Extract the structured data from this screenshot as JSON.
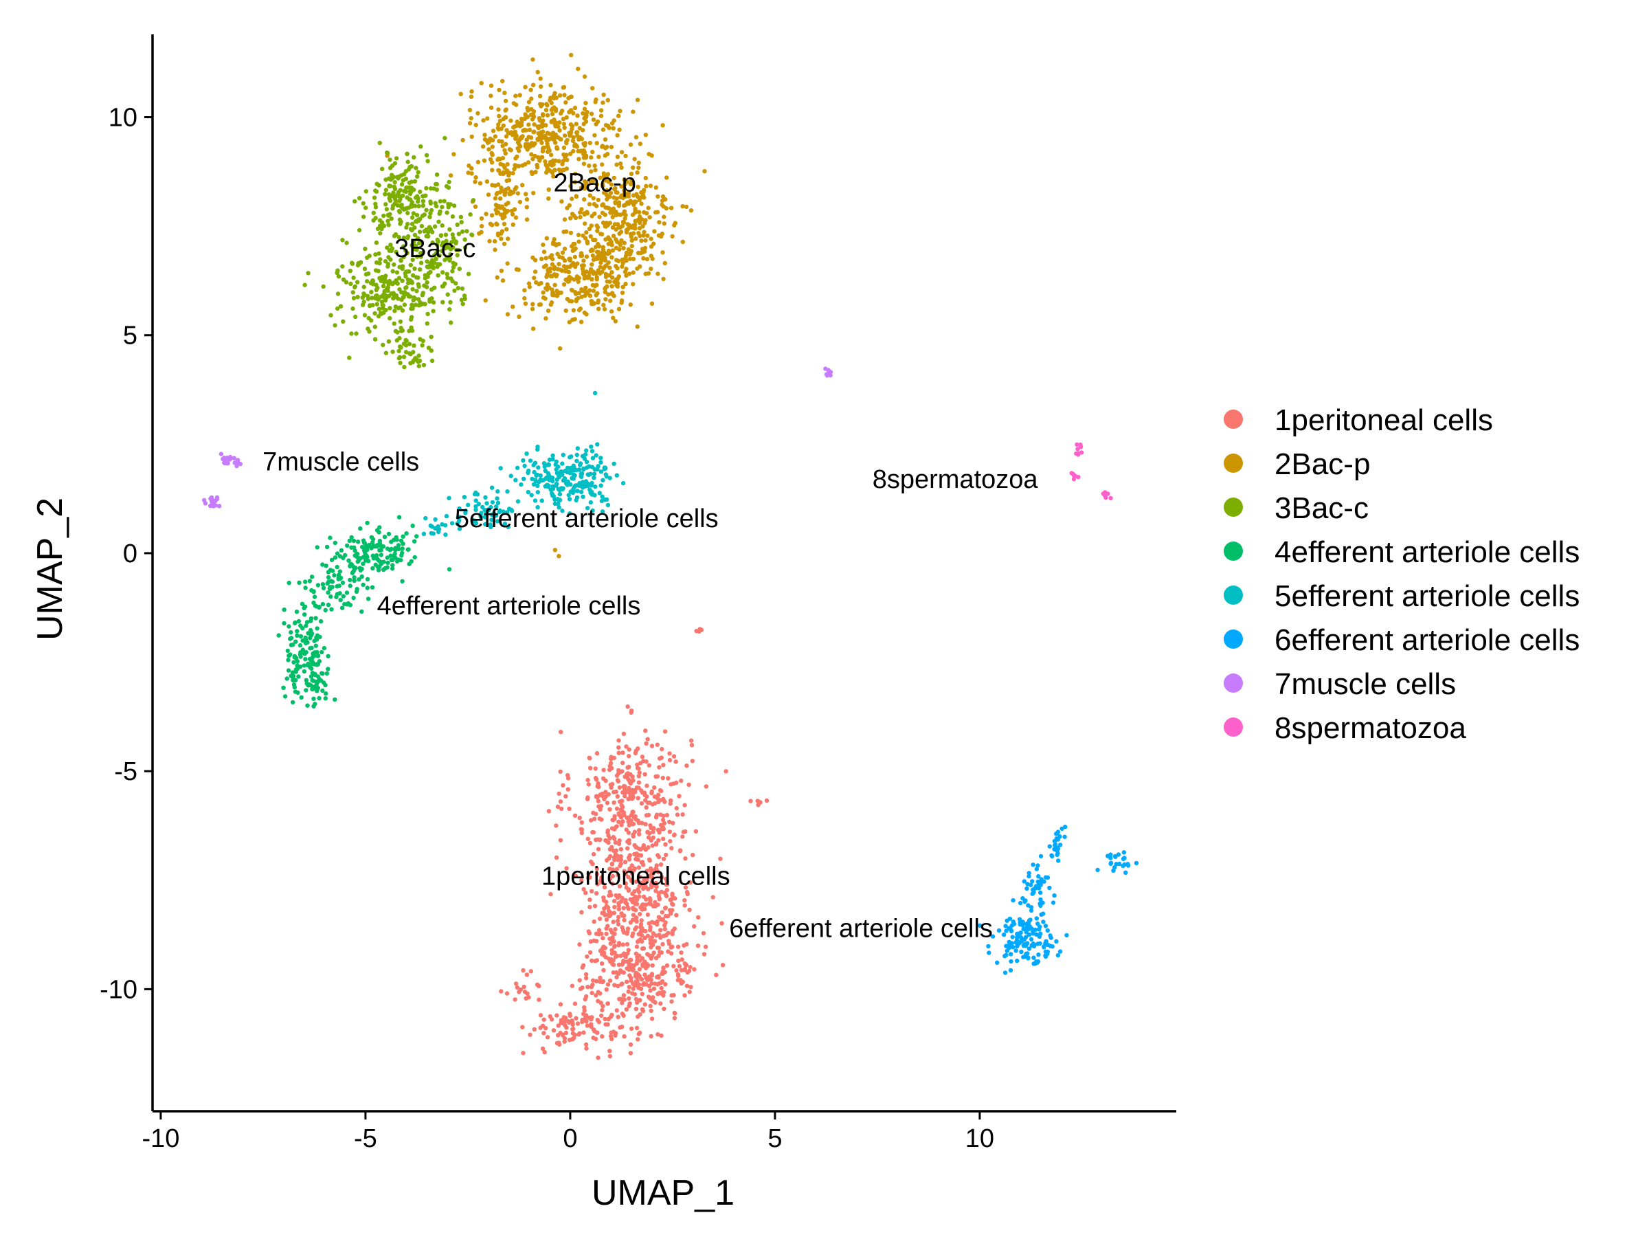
{
  "chart_data": {
    "type": "scatter",
    "title": "",
    "xlabel": "UMAP_1",
    "ylabel": "UMAP_2",
    "xlim": [
      -10.2,
      14.8
    ],
    "ylim": [
      -12.8,
      11.9
    ],
    "x_ticks": [
      {
        "value": -10,
        "label": "-10"
      },
      {
        "value": -5,
        "label": "-5"
      },
      {
        "value": 0,
        "label": "0"
      },
      {
        "value": 5,
        "label": "5"
      },
      {
        "value": 10,
        "label": "10"
      }
    ],
    "y_ticks": [
      {
        "value": 10,
        "label": "10"
      },
      {
        "value": 5,
        "label": "5"
      },
      {
        "value": 0,
        "label": "0"
      },
      {
        "value": -5,
        "label": "-5"
      },
      {
        "value": -10,
        "label": "-10"
      }
    ],
    "grid": false,
    "legend_position": "right",
    "series": [
      {
        "name": "1peritoneal cells",
        "color": "#F8766D",
        "label": "1peritoneal cells",
        "label_at": [
          1.6,
          -7.4
        ],
        "blobs": [
          {
            "cx": 1.5,
            "cy": -5.6,
            "rx": 1.3,
            "ry": 1.4,
            "n": 320
          },
          {
            "cx": 1.6,
            "cy": -7.8,
            "rx": 1.3,
            "ry": 1.4,
            "n": 360
          },
          {
            "cx": 1.7,
            "cy": -9.6,
            "rx": 1.3,
            "ry": 1.0,
            "n": 300
          },
          {
            "cx": 0.3,
            "cy": -10.9,
            "rx": 1.2,
            "ry": 0.45,
            "n": 110
          },
          {
            "cx": -1.2,
            "cy": -10.0,
            "rx": 0.4,
            "ry": 0.35,
            "n": 18
          },
          {
            "cx": 3.2,
            "cy": -1.8,
            "rx": 0.12,
            "ry": 0.1,
            "n": 5
          },
          {
            "cx": 4.6,
            "cy": -5.7,
            "rx": 0.2,
            "ry": 0.06,
            "n": 6
          }
        ]
      },
      {
        "name": "2Bac-p",
        "color": "#CD9600",
        "label": "2Bac-p",
        "label_at": [
          0.6,
          8.5
        ],
        "blobs": [
          {
            "cx": -0.6,
            "cy": 9.6,
            "rx": 1.7,
            "ry": 1.0,
            "n": 420
          },
          {
            "cx": 1.2,
            "cy": 7.6,
            "rx": 1.2,
            "ry": 1.5,
            "n": 350
          },
          {
            "cx": 0.1,
            "cy": 6.3,
            "rx": 1.3,
            "ry": 0.9,
            "n": 260
          },
          {
            "cx": -1.7,
            "cy": 8.0,
            "rx": 0.5,
            "ry": 1.0,
            "n": 90
          },
          {
            "cx": -0.3,
            "cy": 0.1,
            "rx": 0.1,
            "ry": 0.15,
            "n": 2
          }
        ]
      },
      {
        "name": "3Bac-c",
        "color": "#7CAE00",
        "label": "3Bac-c",
        "label_at": [
          -3.3,
          7.0
        ],
        "blobs": [
          {
            "cx": -4.0,
            "cy": 8.0,
            "rx": 0.9,
            "ry": 1.0,
            "n": 230
          },
          {
            "cx": -4.3,
            "cy": 6.1,
            "rx": 1.2,
            "ry": 1.0,
            "n": 280
          },
          {
            "cx": -3.0,
            "cy": 7.0,
            "rx": 0.5,
            "ry": 1.0,
            "n": 70
          },
          {
            "cx": -3.8,
            "cy": 4.6,
            "rx": 0.6,
            "ry": 0.35,
            "n": 40
          }
        ]
      },
      {
        "name": "4efferent arteriole cells",
        "color": "#00BE67",
        "label": "4efferent arteriole cells",
        "label_at": [
          -1.5,
          -1.2
        ],
        "blobs": [
          {
            "cx": -4.8,
            "cy": 0.0,
            "rx": 0.9,
            "ry": 0.5,
            "n": 140
          },
          {
            "cx": -5.8,
            "cy": -0.8,
            "rx": 0.7,
            "ry": 0.6,
            "n": 80
          },
          {
            "cx": -6.5,
            "cy": -2.3,
            "rx": 0.45,
            "ry": 0.9,
            "n": 130
          },
          {
            "cx": -6.1,
            "cy": -3.0,
            "rx": 0.3,
            "ry": 0.3,
            "n": 30
          }
        ]
      },
      {
        "name": "5efferent arteriole cells",
        "color": "#00BFC4",
        "label": "5efferent arteriole cells",
        "label_at": [
          0.4,
          0.8
        ],
        "blobs": [
          {
            "cx": 0.0,
            "cy": 1.7,
            "rx": 1.1,
            "ry": 0.55,
            "n": 230
          },
          {
            "cx": -2.0,
            "cy": 1.0,
            "rx": 0.7,
            "ry": 0.35,
            "n": 60
          },
          {
            "cx": -3.2,
            "cy": 0.6,
            "rx": 0.4,
            "ry": 0.2,
            "n": 20
          },
          {
            "cx": 0.6,
            "cy": 3.7,
            "rx": 0.05,
            "ry": 0.05,
            "n": 1
          }
        ]
      },
      {
        "name": "6efferent arteriole cells",
        "color": "#00A9FF",
        "label": "6efferent arteriole cells",
        "label_at": [
          7.1,
          -8.6
        ],
        "blobs": [
          {
            "cx": 11.1,
            "cy": -8.8,
            "rx": 0.7,
            "ry": 0.55,
            "n": 140
          },
          {
            "cx": 11.4,
            "cy": -7.6,
            "rx": 0.3,
            "ry": 0.5,
            "n": 40
          },
          {
            "cx": 11.9,
            "cy": -6.6,
            "rx": 0.15,
            "ry": 0.35,
            "n": 25
          },
          {
            "cx": 13.4,
            "cy": -7.1,
            "rx": 0.35,
            "ry": 0.25,
            "n": 22
          }
        ]
      },
      {
        "name": "7muscle cells",
        "color": "#C77CFF",
        "label": "7muscle cells",
        "label_at": [
          -5.6,
          2.1
        ],
        "blobs": [
          {
            "cx": -8.3,
            "cy": 2.1,
            "rx": 0.25,
            "ry": 0.15,
            "n": 22
          },
          {
            "cx": -8.7,
            "cy": 1.15,
            "rx": 0.2,
            "ry": 0.12,
            "n": 18
          },
          {
            "cx": 6.3,
            "cy": 4.15,
            "rx": 0.12,
            "ry": 0.08,
            "n": 8
          }
        ]
      },
      {
        "name": "8spermatozoa",
        "color": "#FF61CC",
        "label": "8spermatozoa",
        "label_at": [
          9.4,
          1.7
        ],
        "blobs": [
          {
            "cx": 12.4,
            "cy": 2.4,
            "rx": 0.12,
            "ry": 0.15,
            "n": 8
          },
          {
            "cx": 12.3,
            "cy": 1.8,
            "rx": 0.12,
            "ry": 0.1,
            "n": 6
          },
          {
            "cx": 13.1,
            "cy": 1.35,
            "rx": 0.15,
            "ry": 0.1,
            "n": 8
          }
        ]
      }
    ]
  }
}
